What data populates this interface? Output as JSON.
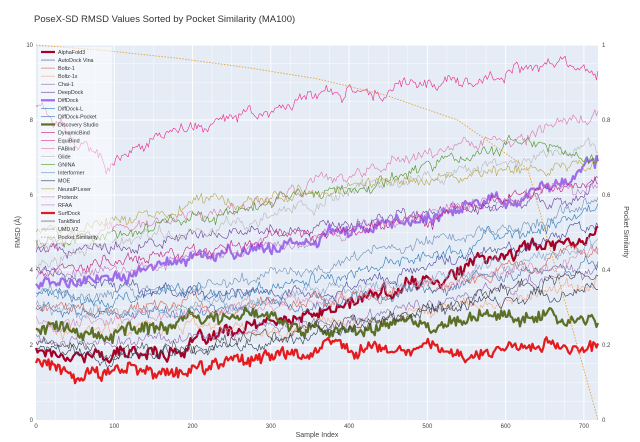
{
  "chart_data": {
    "type": "line",
    "title": "PoseX-SD RMSD Values Sorted by Pocket Similarity (MA100)",
    "xlabel": "Sample Index",
    "ylabel": "RMSD (Å)",
    "y2label": "Pocket Similarity",
    "xlim": [
      0,
      718
    ],
    "ylim": [
      0,
      10
    ],
    "y2lim": [
      0,
      1
    ],
    "xticks": [
      "0",
      "100",
      "200",
      "300",
      "400",
      "500",
      "600",
      "700"
    ],
    "xtick_values": [
      0,
      100,
      200,
      300,
      400,
      500,
      600,
      700
    ],
    "yticks": [
      "0",
      "2",
      "4",
      "6",
      "8",
      "10"
    ],
    "ytick_values": [
      0,
      2,
      4,
      6,
      8,
      10
    ],
    "y2ticks": [
      "0",
      "0.2",
      "0.4",
      "0.6",
      "0.8",
      "1"
    ],
    "y2tick_values": [
      0,
      0.2,
      0.4,
      0.6,
      0.8,
      1
    ],
    "legend_position": "top-left",
    "series": [
      {
        "name": "AlphaFold3",
        "color": "#a50026",
        "width": 2.2,
        "values": [
          1.9,
          1.7,
          1.9,
          2.4,
          2.8,
          3.4,
          4.0,
          4.6,
          5.0
        ]
      },
      {
        "name": "AutoDock Vina",
        "color": "#4a4a9c",
        "width": 0.6,
        "values": [
          4.1,
          3.6,
          3.4,
          3.3,
          3.5,
          3.8,
          4.2,
          4.7,
          5.3
        ]
      },
      {
        "name": "Boltz-1",
        "color": "#d6604d",
        "width": 0.6,
        "values": [
          3.0,
          2.9,
          3.1,
          3.0,
          3.1,
          3.3,
          3.7,
          4.1,
          4.5
        ]
      },
      {
        "name": "Boltz-1x",
        "color": "#f4a582",
        "width": 0.6,
        "values": [
          2.4,
          2.3,
          2.5,
          2.4,
          2.6,
          2.8,
          3.1,
          3.4,
          3.7
        ]
      },
      {
        "name": "Chai-1",
        "color": "#8c6bb1",
        "width": 0.6,
        "values": [
          2.2,
          2.1,
          2.3,
          2.4,
          2.6,
          2.9,
          3.3,
          3.6,
          4.0
        ]
      },
      {
        "name": "DeepDock",
        "color": "#6a3d9a",
        "width": 0.6,
        "values": [
          4.5,
          4.6,
          4.8,
          5.0,
          5.2,
          5.5,
          5.6,
          5.8,
          6.2
        ]
      },
      {
        "name": "DiffDock",
        "color": "#9e6bea",
        "width": 2.2,
        "values": [
          3.6,
          3.8,
          4.3,
          4.4,
          4.8,
          5.2,
          5.6,
          6.0,
          6.9
        ]
      },
      {
        "name": "DiffDock-L",
        "color": "#2c7bb6",
        "width": 0.6,
        "values": [
          3.3,
          3.1,
          3.3,
          3.5,
          3.8,
          4.2,
          4.6,
          5.1,
          5.6
        ]
      },
      {
        "name": "DiffDock-Pocket",
        "color": "#3d6fb0",
        "width": 0.6,
        "values": [
          3.0,
          2.8,
          2.9,
          3.0,
          3.1,
          3.3,
          3.6,
          3.9,
          4.3
        ]
      },
      {
        "name": "Discovery Studio",
        "color": "#5b7026",
        "width": 2.2,
        "values": [
          2.4,
          2.3,
          2.6,
          2.9,
          2.5,
          2.4,
          2.6,
          2.8,
          2.7
        ]
      },
      {
        "name": "DynamicBind",
        "color": "#c51b7d",
        "width": 0.6,
        "values": [
          3.9,
          4.2,
          4.5,
          4.7,
          5.0,
          5.3,
          5.6,
          6.1,
          6.4
        ]
      },
      {
        "name": "EquiBind",
        "color": "#e7298a",
        "width": 0.6,
        "values": [
          8.4,
          6.7,
          7.8,
          8.1,
          8.7,
          8.8,
          9.0,
          9.4,
          9.3
        ]
      },
      {
        "name": "FABind",
        "color": "#de77ae",
        "width": 0.6,
        "values": [
          4.7,
          5.0,
          5.4,
          5.7,
          6.3,
          6.9,
          7.3,
          7.6,
          8.3
        ]
      },
      {
        "name": "Glide",
        "color": "#b8b8b8",
        "width": 0.6,
        "values": [
          4.2,
          4.6,
          5.0,
          5.3,
          5.8,
          6.3,
          6.7,
          7.0,
          7.3
        ]
      },
      {
        "name": "GNINA",
        "color": "#4d9221",
        "width": 0.6,
        "values": [
          4.8,
          5.0,
          5.3,
          5.6,
          6.0,
          6.4,
          6.9,
          7.5,
          7.0
        ]
      },
      {
        "name": "Interformer",
        "color": "#6f8fb8",
        "width": 0.6,
        "values": [
          3.4,
          3.3,
          3.5,
          3.8,
          4.1,
          4.5,
          4.9,
          5.3,
          5.8
        ]
      },
      {
        "name": "MOE",
        "color": "#2e3b55",
        "width": 0.6,
        "values": [
          1.9,
          1.7,
          1.8,
          2.0,
          2.3,
          2.7,
          3.0,
          3.3,
          3.6
        ]
      },
      {
        "name": "NeuralPLexer",
        "color": "#b8a64a",
        "width": 0.6,
        "values": [
          5.0,
          5.3,
          5.6,
          5.9,
          6.1,
          6.4,
          6.5,
          6.7,
          6.9
        ]
      },
      {
        "name": "Protenix",
        "color": "#d98bb5",
        "width": 0.6,
        "values": [
          2.7,
          2.6,
          2.8,
          3.0,
          3.2,
          3.4,
          3.7,
          4.0,
          4.4
        ]
      },
      {
        "name": "RFAA",
        "color": "#bf7cc8",
        "width": 0.6,
        "values": [
          3.8,
          4.0,
          4.3,
          4.6,
          4.9,
          5.3,
          5.6,
          6.0,
          6.3
        ]
      },
      {
        "name": "SurfDock",
        "color": "#e41a1c",
        "width": 2.2,
        "values": [
          1.5,
          1.3,
          1.4,
          1.6,
          1.8,
          1.9,
          1.9,
          2.0,
          2.1
        ]
      },
      {
        "name": "TankBind",
        "color": "#444444",
        "width": 0.6,
        "values": [
          2.0,
          1.8,
          1.9,
          2.1,
          2.4,
          2.8,
          3.2,
          3.6,
          4.0
        ]
      },
      {
        "name": "UMD V2",
        "color": "#8aa6c7",
        "width": 0.6,
        "values": [
          3.1,
          2.9,
          3.0,
          3.2,
          3.4,
          3.6,
          3.9,
          4.3,
          4.7
        ]
      },
      {
        "name": "Pocket Similarity",
        "color": "#e6a23c",
        "width": 0.9,
        "dashed": true,
        "axis": "y2",
        "values": [
          1.0,
          0.985,
          0.965,
          0.94,
          0.91,
          0.865,
          0.8,
          0.67,
          0.0
        ]
      }
    ]
  }
}
